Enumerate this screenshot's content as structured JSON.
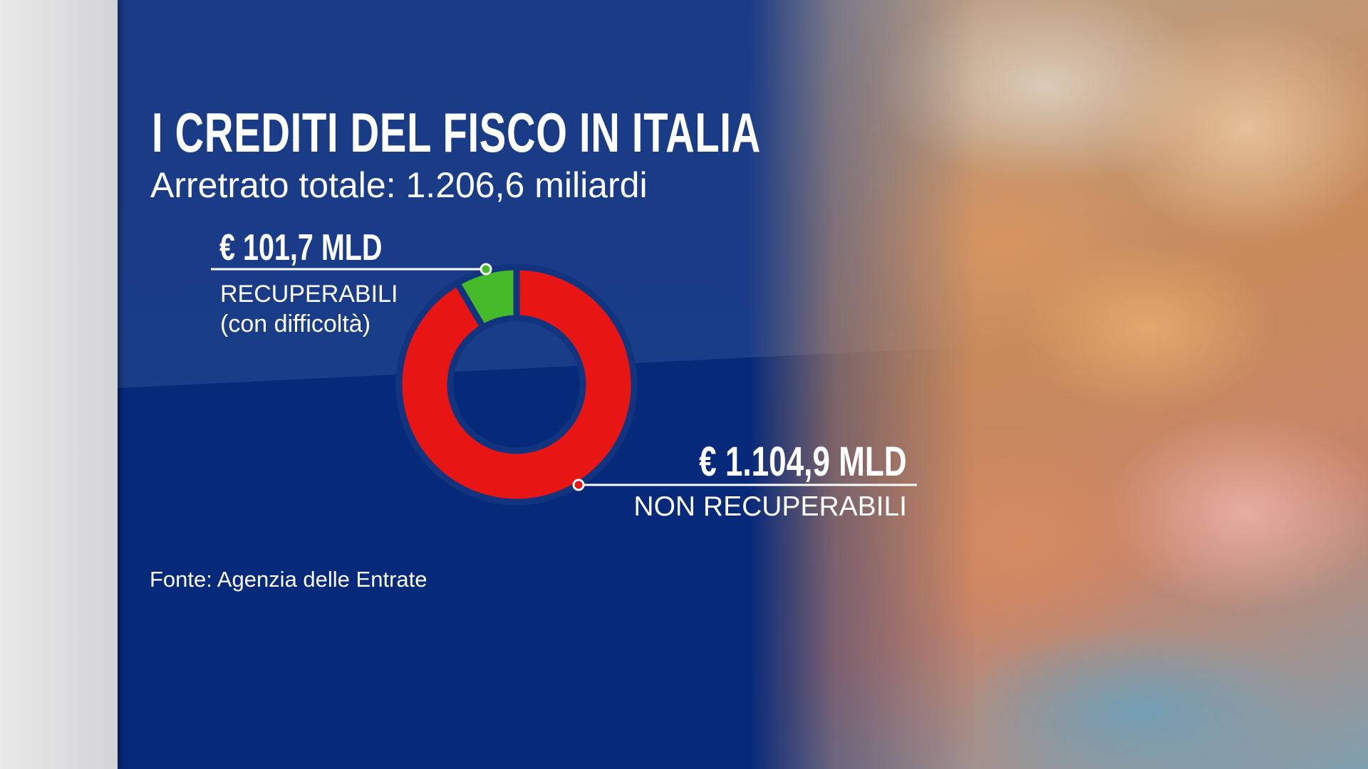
{
  "title": "I CREDITI DEL FISCO IN ITALIA",
  "subtitle": "Arretrato totale: 1.206,6 miliardi",
  "source": "Fonte: Agenzia delle Entrate",
  "chart_data": {
    "type": "pie",
    "donut": true,
    "total": 1206.6,
    "unit": "MLD €",
    "slices": [
      {
        "label": "RECUPERABILI (con difficoltà)",
        "value": 101.7,
        "value_label": "€ 101,7 MLD",
        "label_line1": "RECUPERABILI",
        "label_line2": "(con difficoltà)",
        "color": "#45bb2a"
      },
      {
        "label": "NON RECUPERABILI",
        "value": 1104.9,
        "value_label": "€ 1.104,9 MLD",
        "label_line1": "NON RECUPERABILI",
        "color": "#e81515"
      }
    ]
  },
  "colors": {
    "background": "#0a2d7a",
    "panel_upper": "#1a3b86",
    "recoverable": "#45bb2a",
    "non_recoverable": "#e81515"
  }
}
